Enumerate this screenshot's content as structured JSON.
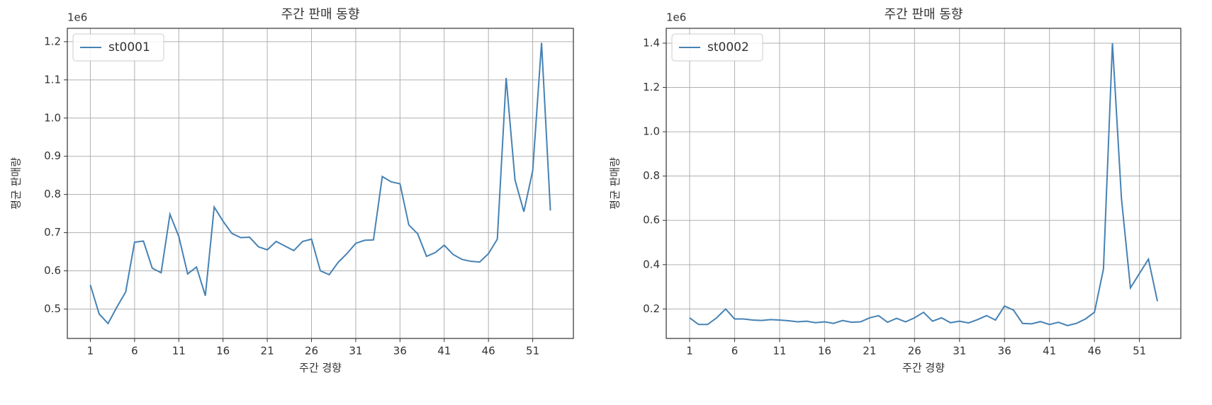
{
  "chart_data": [
    {
      "type": "line",
      "title": "주간 판매 동향",
      "xlabel": "주간 경향",
      "ylabel": "평균 판매량",
      "offset_text": "1e6",
      "x": [
        1,
        2,
        3,
        4,
        5,
        6,
        7,
        8,
        9,
        10,
        11,
        12,
        13,
        14,
        15,
        16,
        17,
        18,
        19,
        20,
        21,
        22,
        23,
        24,
        25,
        26,
        27,
        28,
        29,
        30,
        31,
        32,
        33,
        34,
        35,
        36,
        37,
        38,
        39,
        40,
        41,
        42,
        43,
        44,
        45,
        46,
        47,
        48,
        49,
        50,
        51,
        52,
        53
      ],
      "series": [
        {
          "name": "st0001",
          "color": "#4682b4",
          "values": [
            0.563,
            0.487,
            0.462,
            0.505,
            0.545,
            0.675,
            0.678,
            0.607,
            0.595,
            0.748,
            0.69,
            0.592,
            0.61,
            0.535,
            0.767,
            0.73,
            0.698,
            0.687,
            0.688,
            0.663,
            0.655,
            0.677,
            0.665,
            0.653,
            0.677,
            0.683,
            0.6,
            0.59,
            0.622,
            0.645,
            0.672,
            0.68,
            0.681,
            0.847,
            0.833,
            0.828,
            0.72,
            0.697,
            0.638,
            0.648,
            0.667,
            0.643,
            0.63,
            0.625,
            0.623,
            0.645,
            0.683,
            1.105,
            0.838,
            0.755,
            0.862,
            1.197,
            0.758
          ]
        }
      ],
      "xlim": [
        -1.6,
        55.6
      ],
      "ylim": [
        0.423,
        1.235
      ],
      "xticks": [
        1,
        6,
        11,
        16,
        21,
        26,
        31,
        36,
        41,
        46,
        51
      ],
      "yticks": [
        0.5,
        0.6,
        0.7,
        0.8,
        0.9,
        {
          "value": 1,
          "label": "1.0"
        },
        1.1,
        1.2
      ],
      "grid": true,
      "legend": "upper left"
    },
    {
      "type": "line",
      "title": "주간 판매 동향",
      "xlabel": "주간 경향",
      "ylabel": "평균 판매량",
      "offset_text": "1e6",
      "x": [
        1,
        2,
        3,
        4,
        5,
        6,
        7,
        8,
        9,
        10,
        11,
        12,
        13,
        14,
        15,
        16,
        17,
        18,
        19,
        20,
        21,
        22,
        23,
        24,
        25,
        26,
        27,
        28,
        29,
        30,
        31,
        32,
        33,
        34,
        35,
        36,
        37,
        38,
        39,
        40,
        41,
        42,
        43,
        44,
        45,
        46,
        47,
        48,
        49,
        50,
        51,
        52,
        53
      ],
      "series": [
        {
          "name": "st0002",
          "color": "#4682b4",
          "values": [
            0.16,
            0.13,
            0.13,
            0.16,
            0.2,
            0.155,
            0.155,
            0.15,
            0.148,
            0.152,
            0.15,
            0.147,
            0.142,
            0.145,
            0.138,
            0.142,
            0.135,
            0.148,
            0.14,
            0.142,
            0.16,
            0.17,
            0.14,
            0.158,
            0.142,
            0.16,
            0.185,
            0.145,
            0.16,
            0.138,
            0.145,
            0.137,
            0.152,
            0.17,
            0.15,
            0.213,
            0.195,
            0.135,
            0.133,
            0.143,
            0.13,
            0.14,
            0.125,
            0.135,
            0.155,
            0.185,
            0.38,
            1.4,
            0.7,
            0.295,
            0.36,
            0.425,
            0.235
          ]
        }
      ],
      "xlim": [
        -1.6,
        55.6
      ],
      "ylim": [
        0.067,
        1.467
      ],
      "xticks": [
        1,
        6,
        11,
        16,
        21,
        26,
        31,
        36,
        41,
        46,
        51
      ],
      "yticks": [
        0.2,
        0.4,
        0.6,
        0.8,
        {
          "value": 1,
          "label": "1.0"
        },
        1.2,
        1.4
      ],
      "grid": true,
      "legend": "upper left"
    }
  ]
}
